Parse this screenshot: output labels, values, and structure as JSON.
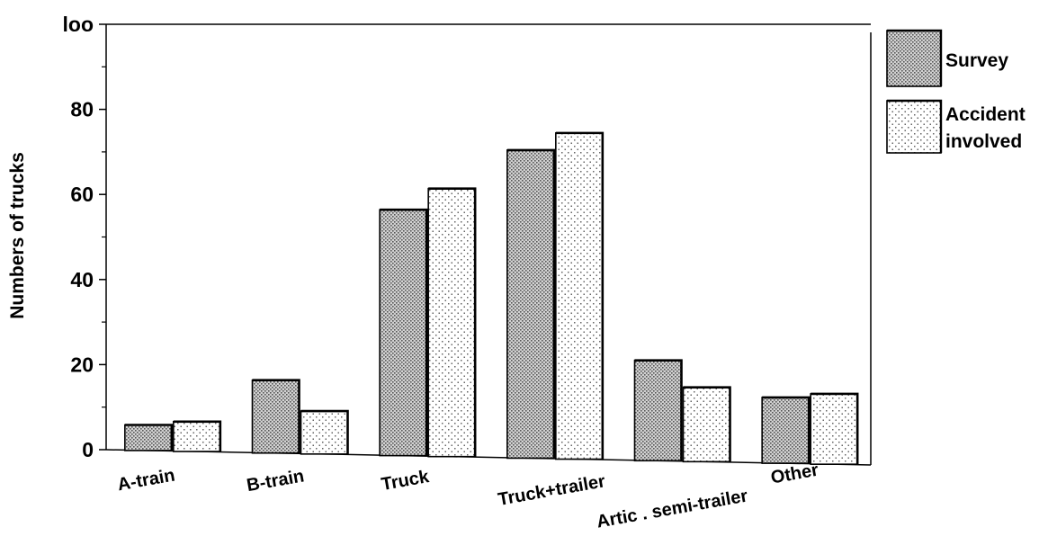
{
  "chart_data": {
    "type": "bar",
    "title": "",
    "xlabel": "",
    "ylabel": "Numbers of trucks",
    "ylim": [
      0,
      100
    ],
    "yticks": [
      {
        "value": 0,
        "label": "0"
      },
      {
        "value": 20,
        "label": "20"
      },
      {
        "value": 40,
        "label": "40"
      },
      {
        "value": 60,
        "label": "60"
      },
      {
        "value": 80,
        "label": "80"
      },
      {
        "value": 100,
        "label": "loo"
      }
    ],
    "categories": [
      "A-train",
      "B-train",
      "Truck",
      "Truck+trailer",
      "Artic . semi-trailer",
      "Other"
    ],
    "series": [
      {
        "name": "Survey",
        "values": [
          6,
          17,
          57,
          71,
          23,
          15
        ],
        "color": "#bdbdbd",
        "pattern": "dense-dots"
      },
      {
        "name": "Accident involved",
        "values": [
          7,
          10,
          62,
          75,
          17,
          16
        ],
        "color": "#ffffff",
        "pattern": "sparse-dots"
      }
    ],
    "legend": {
      "placement": "right",
      "entries": [
        {
          "lines": [
            "Survey"
          ]
        },
        {
          "lines": [
            "Accident",
            "involved"
          ]
        }
      ]
    },
    "grid": false
  }
}
